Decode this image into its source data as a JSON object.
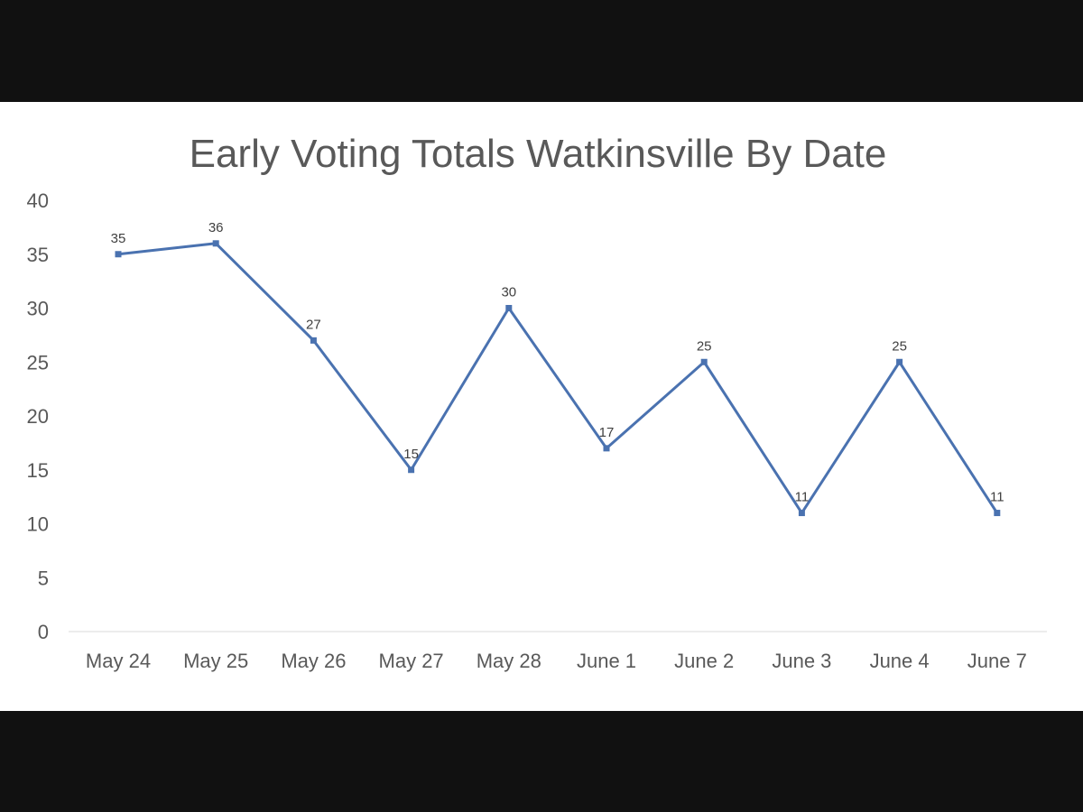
{
  "chart_data": {
    "type": "line",
    "title": "Early Voting Totals Watkinsville By Date",
    "xlabel": "",
    "ylabel": "",
    "categories": [
      "May 24",
      "May 25",
      "May 26",
      "May 27",
      "May 28",
      "June 1",
      "June 2",
      "June 3",
      "June 4",
      "June 7"
    ],
    "series": [
      {
        "values": [
          35,
          36,
          27,
          15,
          30,
          17,
          25,
          11,
          25,
          11
        ],
        "color": "#4a72b0"
      }
    ],
    "ylim": [
      0,
      40
    ],
    "yticks": [
      0,
      5,
      10,
      15,
      20,
      25,
      30,
      35,
      40
    ],
    "grid": false,
    "legend": "none",
    "data_labels": true
  }
}
